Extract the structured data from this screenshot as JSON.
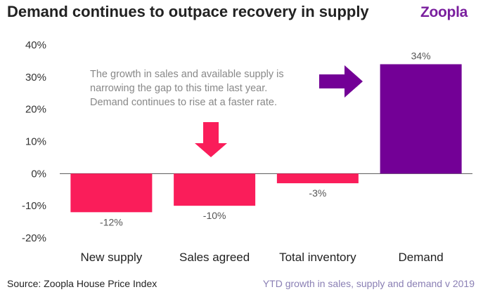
{
  "header": {
    "title": "Demand continues to outpace recovery in supply",
    "logo": "Zoopla"
  },
  "annotation": {
    "lines": [
      "The growth in sales and available supply is",
      "narrowing the gap to this time last year.",
      "Demand continues to rise at a faster rate."
    ]
  },
  "footer": {
    "source": "Source: Zoopla House Price Index",
    "subtitle": "YTD growth in sales, supply and demand v 2019"
  },
  "colors": {
    "negative_bar": "#fa1d5a",
    "positive_bar": "#730096",
    "arrow_down": "#fa1d5a",
    "arrow_right": "#730096",
    "axis_text": "#333333",
    "annotation_text": "#888888"
  },
  "chart_data": {
    "type": "bar",
    "categories": [
      "New supply",
      "Sales agreed",
      "Total inventory",
      "Demand"
    ],
    "values": [
      -12,
      -10,
      -3,
      34
    ],
    "value_labels": [
      "-12%",
      "-10%",
      "-3%",
      "34%"
    ],
    "ylim": [
      -20,
      40
    ],
    "yticks": [
      40,
      30,
      20,
      10,
      0,
      -10,
      -20
    ],
    "ytick_labels": [
      "40%",
      "30%",
      "20%",
      "10%",
      "0%",
      "-10%",
      "-20%"
    ],
    "grid": false,
    "legend": "none"
  }
}
